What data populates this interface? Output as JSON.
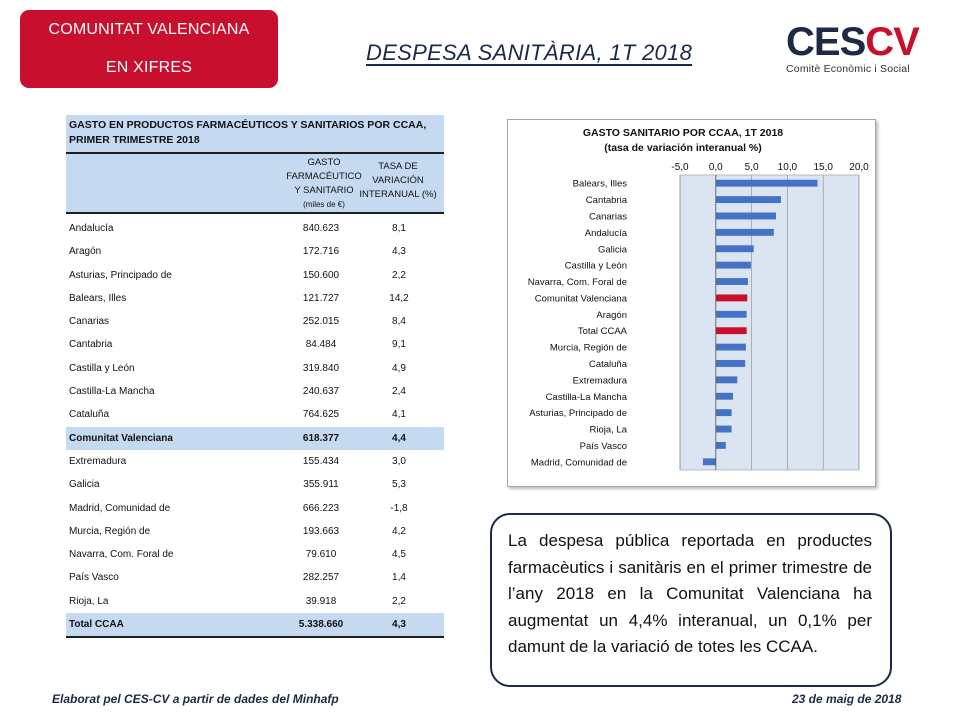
{
  "header": {
    "badge_line1": "COMUNITAT VALENCIANA",
    "badge_line2": "EN XIFRES",
    "title": "DESPESA SANITÀRIA, 1T 2018",
    "logo_left": "CES",
    "logo_right": "CV",
    "logo_sub": "Comitè Econòmic i Social"
  },
  "colors": {
    "badge": "#c8102e",
    "table_highlight": "#c5d9f1",
    "bar_default": "#4472c4",
    "bar_highlight": "#c8102e",
    "plot_bg": "#dbe5f1"
  },
  "table": {
    "title": "GASTO EN PRODUCTOS FARMACÉUTICOS Y SANITARIOS POR CCAA, PRIMER TRIMESTRE 2018",
    "col1_header_l1": "GASTO",
    "col1_header_l2": "FARMACÉUTICO",
    "col1_header_l3": "Y SANITARIO",
    "col1_header_unit": "(miles de €)",
    "col2_header_l1": "TASA DE",
    "col2_header_l2": "VARIACIÓN",
    "col2_header_l3": "INTERANUAL (%)",
    "rows": [
      {
        "name": "Andalucía",
        "value": "840.623",
        "rate": "8,1"
      },
      {
        "name": "Aragón",
        "value": "172.716",
        "rate": "4,3"
      },
      {
        "name": "Asturias, Principado de",
        "value": "150.600",
        "rate": "2,2"
      },
      {
        "name": "Balears, Illes",
        "value": "121.727",
        "rate": "14,2"
      },
      {
        "name": "Canarias",
        "value": "252.015",
        "rate": "8,4"
      },
      {
        "name": "Cantabria",
        "value": "84.484",
        "rate": "9,1"
      },
      {
        "name": "Castilla y León",
        "value": "319.840",
        "rate": "4,9"
      },
      {
        "name": "Castilla-La Mancha",
        "value": "240.637",
        "rate": "2,4"
      },
      {
        "name": "Cataluña",
        "value": "764.625",
        "rate": "4,1"
      },
      {
        "name": "Comunitat Valenciana",
        "value": "618.377",
        "rate": "4,4"
      },
      {
        "name": "Extremadura",
        "value": "155.434",
        "rate": "3,0"
      },
      {
        "name": "Galicia",
        "value": "355.911",
        "rate": "5,3"
      },
      {
        "name": "Madrid, Comunidad de",
        "value": "666.223",
        "rate": "-1,8"
      },
      {
        "name": "Murcia, Región de",
        "value": "193.663",
        "rate": "4,2"
      },
      {
        "name": "Navarra, Com. Foral de",
        "value": "79.610",
        "rate": "4,5"
      },
      {
        "name": "País Vasco",
        "value": "282.257",
        "rate": "1,4"
      },
      {
        "name": "Rioja, La",
        "value": "39.918",
        "rate": "2,2"
      },
      {
        "name": "Total CCAA",
        "value": "5.338.660",
        "rate": "4,3"
      }
    ]
  },
  "chart_data": {
    "type": "bar",
    "orientation": "horizontal",
    "title": "GASTO SANITARIO POR CCAA, 1T 2018",
    "subtitle": "(tasa de variación interanual %)",
    "categories": [
      "Balears, Illes",
      "Cantabria",
      "Canarias",
      "Andalucía",
      "Galicia",
      "Castilla y León",
      "Navarra, Com. Foral de",
      "Comunitat Valenciana",
      "Aragón",
      "Total CCAA",
      "Murcia, Región de",
      "Cataluña",
      "Extremadura",
      "Castilla-La Mancha",
      "Asturias, Principado de",
      "Rioja, La",
      "País Vasco",
      "Madrid, Comunidad de"
    ],
    "values": [
      14.2,
      9.1,
      8.4,
      8.1,
      5.3,
      4.9,
      4.5,
      4.4,
      4.3,
      4.3,
      4.2,
      4.1,
      3.0,
      2.4,
      2.2,
      2.2,
      1.4,
      -1.8
    ],
    "highlight": [
      "Comunitat Valenciana",
      "Total CCAA"
    ],
    "xlim": [
      -5,
      20
    ],
    "xticks": [
      "-5,0",
      "0,0",
      "5,0",
      "10,0",
      "15,0",
      "20,0"
    ],
    "xtick_values": [
      -5,
      0,
      5,
      10,
      15,
      20
    ],
    "grid": true,
    "axis_position": "top"
  },
  "note": "La despesa pública reportada en productes farmacèutics i sanitàris en el primer trimestre de l’any 2018 en la Comunitat Valenciana ha augmentat un 4,4% interanual, un 0,1% per damunt de la variació de totes les CCAA.",
  "footer": {
    "left": "Elaborat pel CES-CV a partir de dades del Minhafp",
    "right": "23 de maig de 2018"
  }
}
